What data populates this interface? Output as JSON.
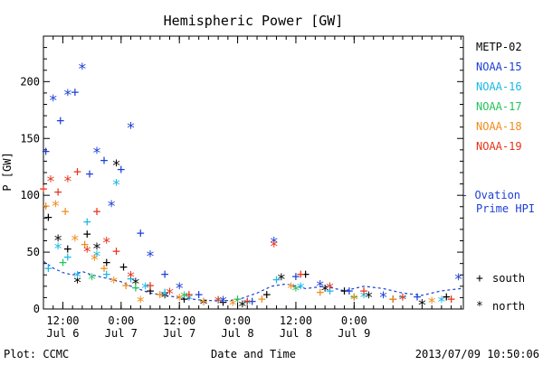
{
  "chart_data": {
    "type": "scatter",
    "title": "Hemispheric Power [GW]",
    "ylabel": "P [GW]",
    "xlabel": "Date and Time",
    "ylim": [
      0,
      240
    ],
    "xlim": [
      "2013-07-06 08:00",
      "2013-07-09 22:30"
    ],
    "y_ticks": [
      0,
      50,
      100,
      150,
      200
    ],
    "x_ticks": [
      {
        "time": "12:00",
        "date": "Jul 6",
        "at": "2013-07-06 12:00"
      },
      {
        "time": "0:00",
        "date": "Jul 7",
        "at": "2013-07-07 00:00"
      },
      {
        "time": "12:00",
        "date": "Jul 7",
        "at": "2013-07-07 12:00"
      },
      {
        "time": "0:00",
        "date": "Jul 8",
        "at": "2013-07-08 00:00"
      },
      {
        "time": "12:00",
        "date": "Jul 8",
        "at": "2013-07-08 12:00"
      },
      {
        "time": "0:00",
        "date": "Jul 9",
        "at": "2013-07-09 00:00"
      }
    ],
    "series": [
      {
        "name": "METP-02",
        "color": "#000000",
        "points": [
          [
            "2013-07-06 09:00",
            80
          ],
          [
            "2013-07-06 11:00",
            62
          ],
          [
            "2013-07-06 13:00",
            52
          ],
          [
            "2013-07-06 15:00",
            25
          ],
          [
            "2013-07-06 17:00",
            65
          ],
          [
            "2013-07-06 19:00",
            55
          ],
          [
            "2013-07-06 21:00",
            40
          ],
          [
            "2013-07-06 23:00",
            128
          ],
          [
            "2013-07-07 00:30",
            36
          ],
          [
            "2013-07-07 03:00",
            24
          ],
          [
            "2013-07-07 06:00",
            15
          ],
          [
            "2013-07-07 09:00",
            12
          ],
          [
            "2013-07-07 13:00",
            8
          ],
          [
            "2013-07-07 17:00",
            6
          ],
          [
            "2013-07-07 21:00",
            5
          ],
          [
            "2013-07-08 01:00",
            4
          ],
          [
            "2013-07-08 06:00",
            12
          ],
          [
            "2013-07-08 09:00",
            28
          ],
          [
            "2013-07-08 14:00",
            30
          ],
          [
            "2013-07-08 18:00",
            18
          ],
          [
            "2013-07-08 22:00",
            15
          ],
          [
            "2013-07-09 03:00",
            12
          ],
          [
            "2013-07-09 08:00",
            8
          ],
          [
            "2013-07-09 14:00",
            5
          ],
          [
            "2013-07-09 19:00",
            10
          ]
        ]
      },
      {
        "name": "NOAA-15",
        "color": "#1c3fd6",
        "points": [
          [
            "2013-07-06 08:30",
            138
          ],
          [
            "2013-07-06 10:00",
            185
          ],
          [
            "2013-07-06 11:30",
            165
          ],
          [
            "2013-07-06 13:00",
            190
          ],
          [
            "2013-07-06 14:30",
            190
          ],
          [
            "2013-07-06 16:00",
            213
          ],
          [
            "2013-07-06 17:30",
            118
          ],
          [
            "2013-07-06 19:00",
            139
          ],
          [
            "2013-07-06 20:30",
            130
          ],
          [
            "2013-07-06 22:00",
            92
          ],
          [
            "2013-07-07 00:00",
            122
          ],
          [
            "2013-07-07 02:00",
            161
          ],
          [
            "2013-07-07 04:00",
            66
          ],
          [
            "2013-07-07 06:00",
            48
          ],
          [
            "2013-07-07 09:00",
            30
          ],
          [
            "2013-07-07 12:00",
            20
          ],
          [
            "2013-07-07 16:00",
            12
          ],
          [
            "2013-07-07 21:00",
            8
          ],
          [
            "2013-07-08 03:00",
            6
          ],
          [
            "2013-07-08 07:30",
            60
          ],
          [
            "2013-07-08 12:00",
            28
          ],
          [
            "2013-07-08 17:00",
            22
          ],
          [
            "2013-07-08 23:00",
            15
          ],
          [
            "2013-07-09 06:00",
            12
          ],
          [
            "2013-07-09 13:00",
            10
          ],
          [
            "2013-07-09 21:30",
            28
          ]
        ]
      },
      {
        "name": "NOAA-16",
        "color": "#1ab8e6",
        "points": [
          [
            "2013-07-06 09:00",
            35
          ],
          [
            "2013-07-06 11:00",
            55
          ],
          [
            "2013-07-06 13:00",
            45
          ],
          [
            "2013-07-06 15:00",
            30
          ],
          [
            "2013-07-06 17:00",
            76
          ],
          [
            "2013-07-06 19:00",
            48
          ],
          [
            "2013-07-06 21:00",
            30
          ],
          [
            "2013-07-06 23:00",
            111
          ],
          [
            "2013-07-07 02:00",
            26
          ],
          [
            "2013-07-07 05:00",
            20
          ],
          [
            "2013-07-07 09:00",
            14
          ],
          [
            "2013-07-07 14:00",
            10
          ],
          [
            "2013-07-07 20:00",
            7
          ],
          [
            "2013-07-08 02:00",
            6
          ],
          [
            "2013-07-08 08:00",
            25
          ],
          [
            "2013-07-08 13:00",
            20
          ],
          [
            "2013-07-08 19:00",
            15
          ],
          [
            "2013-07-09 02:00",
            12
          ],
          [
            "2013-07-09 10:00",
            10
          ],
          [
            "2013-07-09 18:00",
            8
          ]
        ]
      },
      {
        "name": "NOAA-17",
        "color": "#22c45a",
        "points": [
          [
            "2013-07-06 12:00",
            40
          ],
          [
            "2013-07-06 18:00",
            28
          ],
          [
            "2013-07-07 03:00",
            18
          ],
          [
            "2013-07-07 13:00",
            12
          ],
          [
            "2013-07-08 00:00",
            8
          ],
          [
            "2013-07-08 12:00",
            18
          ],
          [
            "2013-07-09 00:00",
            10
          ]
        ]
      },
      {
        "name": "NOAA-18",
        "color": "#f08c1a",
        "points": [
          [
            "2013-07-06 08:30",
            90
          ],
          [
            "2013-07-06 10:30",
            92
          ],
          [
            "2013-07-06 12:30",
            85
          ],
          [
            "2013-07-06 14:30",
            62
          ],
          [
            "2013-07-06 16:30",
            56
          ],
          [
            "2013-07-06 18:30",
            45
          ],
          [
            "2013-07-06 20:30",
            35
          ],
          [
            "2013-07-06 22:30",
            25
          ],
          [
            "2013-07-07 01:00",
            20
          ],
          [
            "2013-07-07 04:00",
            8
          ],
          [
            "2013-07-07 08:00",
            12
          ],
          [
            "2013-07-07 12:00",
            10
          ],
          [
            "2013-07-07 17:00",
            6
          ],
          [
            "2013-07-07 23:00",
            5
          ],
          [
            "2013-07-08 05:00",
            8
          ],
          [
            "2013-07-08 11:00",
            20
          ],
          [
            "2013-07-08 17:00",
            14
          ],
          [
            "2013-07-09 00:00",
            10
          ],
          [
            "2013-07-09 08:00",
            8
          ],
          [
            "2013-07-09 16:00",
            7
          ]
        ]
      },
      {
        "name": "NOAA-19",
        "color": "#e63319",
        "points": [
          [
            "2013-07-06 08:00",
            105
          ],
          [
            "2013-07-06 09:30",
            114
          ],
          [
            "2013-07-06 11:00",
            102
          ],
          [
            "2013-07-06 13:00",
            114
          ],
          [
            "2013-07-06 15:00",
            120
          ],
          [
            "2013-07-06 17:00",
            52
          ],
          [
            "2013-07-06 19:00",
            85
          ],
          [
            "2013-07-06 21:00",
            60
          ],
          [
            "2013-07-06 23:00",
            50
          ],
          [
            "2013-07-07 02:00",
            30
          ],
          [
            "2013-07-07 06:00",
            20
          ],
          [
            "2013-07-07 10:00",
            15
          ],
          [
            "2013-07-07 14:00",
            12
          ],
          [
            "2013-07-07 20:00",
            8
          ],
          [
            "2013-07-08 02:00",
            6
          ],
          [
            "2013-07-08 07:30",
            57
          ],
          [
            "2013-07-08 13:00",
            30
          ],
          [
            "2013-07-08 19:00",
            20
          ],
          [
            "2013-07-09 02:00",
            15
          ],
          [
            "2013-07-09 10:00",
            10
          ],
          [
            "2013-07-09 20:00",
            8
          ]
        ]
      }
    ],
    "ovation": {
      "name": "Ovation Prime HPI",
      "color": "#1c3fd6",
      "points": [
        [
          "2013-07-06 08:00",
          42
        ],
        [
          "2013-07-06 10:00",
          36
        ],
        [
          "2013-07-06 12:00",
          32
        ],
        [
          "2013-07-06 14:00",
          30
        ],
        [
          "2013-07-06 16:00",
          33
        ],
        [
          "2013-07-06 18:00",
          30
        ],
        [
          "2013-07-06 20:00",
          28
        ],
        [
          "2013-07-06 22:00",
          26
        ],
        [
          "2013-07-07 00:00",
          24
        ],
        [
          "2013-07-07 02:00",
          20
        ],
        [
          "2013-07-07 04:00",
          17
        ],
        [
          "2013-07-07 06:00",
          14
        ],
        [
          "2013-07-07 09:00",
          12
        ],
        [
          "2013-07-07 12:00",
          10
        ],
        [
          "2013-07-07 16:00",
          8
        ],
        [
          "2013-07-07 20:00",
          7
        ],
        [
          "2013-07-08 00:00",
          8
        ],
        [
          "2013-07-08 04:00",
          14
        ],
        [
          "2013-07-08 07:00",
          20
        ],
        [
          "2013-07-08 10:00",
          22
        ],
        [
          "2013-07-08 14:00",
          18
        ],
        [
          "2013-07-08 18:00",
          20
        ],
        [
          "2013-07-08 22:00",
          16
        ],
        [
          "2013-07-09 02:00",
          20
        ],
        [
          "2013-07-09 06:00",
          18
        ],
        [
          "2013-07-09 10:00",
          14
        ],
        [
          "2013-07-09 14:00",
          12
        ],
        [
          "2013-07-09 18:00",
          16
        ],
        [
          "2013-07-09 22:00",
          18
        ]
      ]
    },
    "legend": {
      "placement": "right",
      "ovation_label_1": "- Ovation",
      "ovation_label_2": "Prime HPI",
      "south_label": "south",
      "north_label": "north"
    }
  },
  "footer": {
    "plot_by": "Plot: CCMC",
    "timestamp": "2013/07/09 10:50:06"
  }
}
